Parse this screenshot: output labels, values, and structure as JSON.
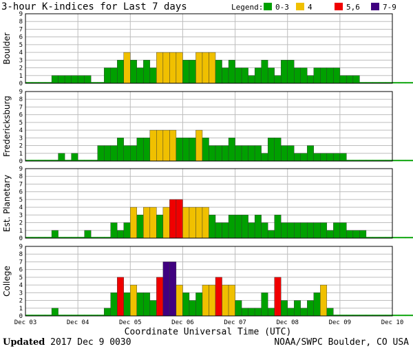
{
  "colors": {
    "k0_3": "#00a000",
    "k4": "#f0c000",
    "k5_6": "#f00000",
    "k7_9": "#400080"
  },
  "footer": {
    "updated_label": "Updated",
    "updated_value": "2017 Dec  9 0030",
    "credit": "NOAA/SWPC Boulder, CO USA"
  },
  "chart_data": {
    "type": "bar",
    "title": "3-hour K-indices for Last 7 days",
    "legend": {
      "label": "Legend:",
      "position": "top-right",
      "entries": [
        {
          "label": "0-3",
          "color": "#00a000"
        },
        {
          "label": "4",
          "color": "#f0c000"
        },
        {
          "label": "5,6",
          "color": "#f00000"
        },
        {
          "label": "7-9",
          "color": "#400080"
        }
      ]
    },
    "xlabel": "Coordinate Universal Time (UTC)",
    "x_ticks": [
      "Dec 03",
      "Dec 04",
      "Dec 05",
      "Dec 06",
      "Dec 07",
      "Dec 08",
      "Dec 09",
      "Dec 10"
    ],
    "ylim": [
      0,
      9
    ],
    "y_ticks": [
      0,
      1,
      2,
      3,
      4,
      5,
      6,
      7,
      8,
      9
    ],
    "grid": true,
    "bins_per_day": 8,
    "panels": [
      {
        "name": "Boulder",
        "values": [
          0,
          0,
          0,
          0,
          1,
          1,
          1,
          1,
          1,
          1,
          0,
          0,
          2,
          2,
          3,
          4,
          3,
          2,
          3,
          2,
          4,
          4,
          4,
          4,
          3,
          3,
          4,
          4,
          4,
          3,
          2,
          3,
          2,
          2,
          1,
          2,
          3,
          2,
          1,
          3,
          3,
          2,
          2,
          1,
          2,
          2,
          2,
          2,
          1,
          1,
          1,
          0,
          0,
          0,
          0,
          0,
          0,
          0,
          0,
          0,
          0,
          0,
          0,
          0,
          0,
          0
        ]
      },
      {
        "name": "Fredericksburg",
        "values": [
          0,
          0,
          0,
          0,
          0,
          1,
          0,
          1,
          0,
          0,
          0,
          2,
          2,
          2,
          3,
          2,
          2,
          3,
          3,
          4,
          4,
          4,
          4,
          3,
          3,
          3,
          4,
          3,
          2,
          2,
          2,
          3,
          2,
          2,
          2,
          2,
          1,
          3,
          3,
          2,
          2,
          1,
          1,
          2,
          1,
          1,
          1,
          1,
          1,
          0,
          0,
          0,
          0,
          0,
          0,
          0,
          0,
          0,
          0,
          0,
          0,
          0,
          0,
          0,
          0,
          0
        ]
      },
      {
        "name": "Est. Planetary",
        "values": [
          0,
          0,
          0,
          0,
          1,
          0,
          0,
          0,
          0,
          1,
          0,
          0,
          0,
          2,
          1,
          2,
          4,
          3,
          4,
          4,
          3,
          4,
          5,
          5,
          4,
          4,
          4,
          4,
          3,
          2,
          2,
          3,
          3,
          3,
          2,
          3,
          2,
          1,
          3,
          2,
          2,
          2,
          2,
          2,
          2,
          2,
          1,
          2,
          2,
          1,
          1,
          1,
          0,
          0,
          0,
          0,
          0,
          0,
          0,
          0,
          0,
          0,
          0,
          0,
          0,
          0
        ]
      },
      {
        "name": "College",
        "values": [
          0,
          0,
          0,
          0,
          1,
          0,
          0,
          0,
          0,
          0,
          0,
          0,
          1,
          3,
          5,
          3,
          4,
          3,
          3,
          2,
          5,
          7,
          7,
          4,
          3,
          2,
          3,
          4,
          4,
          5,
          4,
          4,
          2,
          1,
          1,
          1,
          3,
          1,
          5,
          2,
          1,
          2,
          1,
          2,
          3,
          4,
          1,
          0,
          0,
          0,
          0,
          0,
          0,
          0,
          0,
          0,
          0,
          0,
          0,
          0,
          0,
          0,
          0,
          0,
          0,
          0
        ]
      }
    ]
  }
}
